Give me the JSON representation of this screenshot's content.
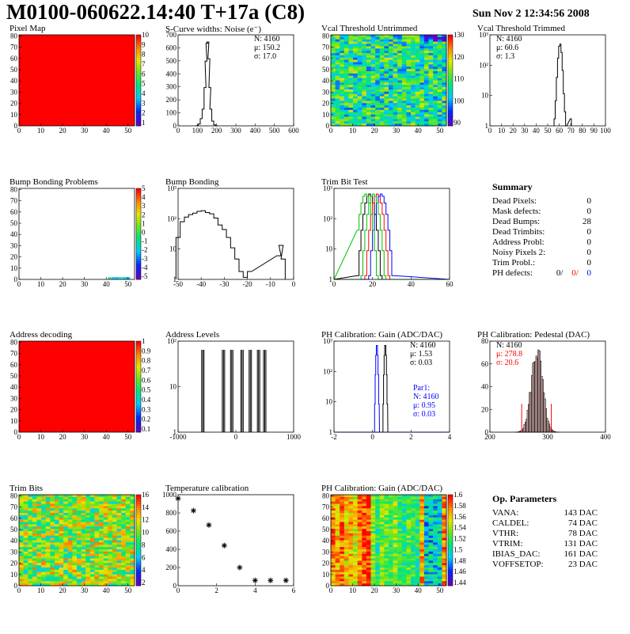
{
  "header": {
    "title": "M0100-060622.14:40 T+17a (C8)",
    "date": "Sun Nov  2 12:34:56 2008"
  },
  "chart_data": [
    {
      "id": "pixelmap",
      "type": "heatmap",
      "title": "Pixel Map",
      "xticks": [
        "0",
        "10",
        "20",
        "30",
        "40",
        "50"
      ],
      "yticks": [
        "0",
        "10",
        "20",
        "30",
        "40",
        "50",
        "60",
        "70",
        "80"
      ],
      "palette_labels": [
        "10",
        "9",
        "8",
        "7",
        "6",
        "5",
        "4",
        "3",
        "2",
        "1"
      ],
      "fill": "uniform-max"
    },
    {
      "id": "scurve",
      "type": "bar",
      "title": "S-Curve widths: Noise (e⁻)",
      "xticks": [
        "0",
        "100",
        "200",
        "300",
        "400",
        "500",
        "600"
      ],
      "yticks": [
        "0",
        "100",
        "200",
        "300",
        "400",
        "500",
        "600",
        "700"
      ],
      "stats": [
        "N: 4160",
        "μ: 150.2",
        "σ: 17.0"
      ],
      "x": [
        100,
        110,
        120,
        130,
        140,
        145,
        150,
        155,
        160,
        165,
        170,
        180,
        190,
        200
      ],
      "y": [
        2,
        15,
        60,
        140,
        320,
        540,
        690,
        700,
        560,
        320,
        140,
        40,
        8,
        1
      ],
      "xlim": [
        0,
        600
      ],
      "ylim": [
        0,
        760
      ]
    },
    {
      "id": "vcaluntrim",
      "type": "heatmap",
      "title": "Vcal Threshold Untrimmed",
      "xticks": [
        "0",
        "10",
        "20",
        "30",
        "40",
        "50"
      ],
      "yticks": [
        "0",
        "10",
        "20",
        "30",
        "40",
        "50",
        "60",
        "70",
        "80"
      ],
      "palette_labels": [
        "130",
        "120",
        "110",
        "100",
        "90"
      ],
      "fill": "random-green"
    },
    {
      "id": "vcaltrim",
      "type": "bar",
      "title": "Vcal Threshold Trimmed",
      "log": true,
      "xticks": [
        "0",
        "10",
        "20",
        "30",
        "40",
        "50",
        "60",
        "70",
        "80",
        "90",
        "100"
      ],
      "yticks": [
        "1",
        "10",
        "10²",
        "10³"
      ],
      "stats": [
        "N: 4160",
        "μ: 60.6",
        "σ:  1.3"
      ],
      "x": [
        56,
        57,
        58,
        59,
        60,
        61,
        62,
        63,
        64,
        65,
        66,
        70
      ],
      "y": [
        1,
        6,
        60,
        400,
        1300,
        1600,
        700,
        120,
        12,
        2,
        0,
        1
      ],
      "xlim": [
        0,
        100
      ],
      "ylim": [
        0.5,
        4000
      ]
    },
    {
      "id": "bump",
      "type": "heatmap",
      "title": "Bump Bonding Problems",
      "xticks": [
        "0",
        "10",
        "20",
        "30",
        "40",
        "50"
      ],
      "yticks": [
        "0",
        "10",
        "20",
        "30",
        "40",
        "50",
        "60",
        "70",
        "80"
      ],
      "palette_labels": [
        "5",
        "4",
        "3",
        "2",
        "1",
        "0",
        "-1",
        "-2",
        "-3",
        "-4",
        "-5"
      ],
      "fill": "sparse"
    },
    {
      "id": "bumpbond",
      "type": "bar",
      "title": "Bump Bonding",
      "log": true,
      "xticks": [
        "-50",
        "-40",
        "-30",
        "-20",
        "-10",
        "0"
      ],
      "yticks": [
        "1",
        "10",
        "10²",
        "10³"
      ],
      "x": [
        -50,
        -48,
        -46,
        -44,
        -42,
        -40,
        -38,
        -36,
        -34,
        -32,
        -30,
        -28,
        -26,
        -24,
        -22,
        -20,
        -18,
        -16,
        -2,
        -1,
        0
      ],
      "y": [
        20,
        80,
        120,
        150,
        170,
        200,
        210,
        180,
        160,
        110,
        60,
        40,
        20,
        8,
        3,
        1,
        0.6,
        1,
        4,
        10,
        3
      ],
      "xlim": [
        -50,
        5
      ],
      "ylim": [
        0.5,
        1500
      ]
    },
    {
      "id": "trimbit",
      "type": "line",
      "title": "Trim Bit Test",
      "log": true,
      "xticks": [
        "0",
        "20",
        "40",
        "60"
      ],
      "yticks": [
        "1",
        "10",
        "10²",
        "10³"
      ],
      "xlim": [
        0,
        60
      ],
      "ylim": [
        0.5,
        2000
      ]
    },
    {
      "id": "pcal_gain_hist",
      "type": "bar",
      "title": "PH Calibration: Gain (ADC/DAC)",
      "log": true,
      "xticks": [
        "-2",
        "0",
        "2",
        "4"
      ],
      "yticks": [
        "1",
        "10",
        "10²",
        "10³"
      ],
      "stats": [
        "N: 4160",
        "μ: 1.53",
        "σ: 0.03"
      ],
      "stats2": [
        "Par1:",
        "N: 4160",
        "μ: 0.95",
        "σ: 0.03"
      ],
      "xlim": [
        -2,
        6
      ],
      "ylim": [
        0.5,
        2000
      ]
    },
    {
      "id": "addrdec",
      "type": "heatmap",
      "title": "Address decoding",
      "xticks": [
        "0",
        "10",
        "20",
        "30",
        "40",
        "50"
      ],
      "yticks": [
        "0",
        "10",
        "20",
        "30",
        "40",
        "50",
        "60",
        "70",
        "80"
      ],
      "palette_labels": [
        "1",
        "0.9",
        "0.8",
        "0.7",
        "0.6",
        "0.5",
        "0.4",
        "0.3",
        "0.2",
        "0.1"
      ],
      "fill": "uniform-max"
    },
    {
      "id": "addrlevels",
      "type": "bar",
      "title": "Address Levels",
      "log": true,
      "xticks": [
        "-1000",
        "0",
        "1000"
      ],
      "yticks": [
        "1",
        "10",
        "10²"
      ],
      "x": [
        -800,
        -300,
        -100,
        150,
        350,
        550,
        700
      ],
      "y": [
        700,
        700,
        700,
        700,
        700,
        700,
        700
      ],
      "xlim": [
        -1400,
        1400
      ],
      "ylim": [
        0.5,
        1500
      ]
    },
    {
      "id": "pcal_ped",
      "type": "bar",
      "title": "PH Calibration: Pedestal (DAC)",
      "xticks": [
        "200",
        "300",
        "400"
      ],
      "yticks": [
        "0",
        "20",
        "40",
        "60",
        "80"
      ],
      "stats": [
        "N: 4160",
        "μ: 278.8",
        "σ: 20.6"
      ],
      "xlim": [
        150,
        470
      ],
      "ylim": [
        0,
        90
      ]
    },
    {
      "id": "trimbits",
      "type": "heatmap",
      "title": "Trim Bits",
      "xticks": [
        "0",
        "10",
        "20",
        "30",
        "40",
        "50"
      ],
      "yticks": [
        "0",
        "10",
        "20",
        "30",
        "40",
        "50",
        "60",
        "70",
        "80"
      ],
      "palette_labels": [
        "16",
        "14",
        "12",
        "10",
        "8",
        "6",
        "4",
        "2"
      ],
      "fill": "random-yellow"
    },
    {
      "id": "tempcal",
      "type": "scatter",
      "title": "Temperature calibration",
      "xticks": [
        "0",
        "2",
        "4",
        "6"
      ],
      "yticks": [
        "0",
        "200",
        "400",
        "600",
        "800",
        "1000"
      ],
      "x": [
        0,
        1,
        2,
        3,
        4,
        5,
        6,
        7
      ],
      "y": [
        1000,
        840,
        650,
        380,
        90,
        -80,
        -80,
        -80
      ],
      "xlim": [
        0,
        7.5
      ],
      "ylim": [
        -150,
        1050
      ]
    },
    {
      "id": "pcal_gain_map",
      "type": "heatmap",
      "title": "PH Calibration: Gain (ADC/DAC)",
      "xticks": [
        "0",
        "10",
        "20",
        "30",
        "40",
        "50"
      ],
      "yticks": [
        "0",
        "10",
        "20",
        "30",
        "40",
        "50",
        "60",
        "70",
        "80"
      ],
      "palette_labels": [
        "1.6",
        "1.58",
        "1.56",
        "1.54",
        "1.52",
        "1.5",
        "1.48",
        "1.46",
        "1.44"
      ],
      "fill": "columns"
    }
  ],
  "summary": {
    "title": "Summary",
    "rows": [
      {
        "label": "Dead Pixels:",
        "value": "0"
      },
      {
        "label": "Mask defects:",
        "value": "0"
      },
      {
        "label": "Dead Bumps:",
        "value": "28"
      },
      {
        "label": "Dead Trimbits:",
        "value": "0"
      },
      {
        "label": "Address Probl:",
        "value": "0"
      },
      {
        "label": "Noisy Pixels 2:",
        "value": "0"
      },
      {
        "label": "Trim Probl.:",
        "value": "0"
      }
    ],
    "ph_label": "PH defects:",
    "ph_values": [
      "0/",
      "0/",
      "0"
    ],
    "ph_colors": [
      "#000000",
      "#ff0000",
      "#0000ff"
    ]
  },
  "op": {
    "title": "Op. Parameters",
    "rows": [
      {
        "label": "VANA:",
        "value": "143 DAC"
      },
      {
        "label": "CALDEL:",
        "value": "74 DAC"
      },
      {
        "label": "VTHR:",
        "value": "78 DAC"
      },
      {
        "label": "VTRIM:",
        "value": "131 DAC"
      },
      {
        "label": "IBIAS_DAC:",
        "value": "161 DAC"
      },
      {
        "label": "VOFFSETOP:",
        "value": "23 DAC"
      }
    ]
  }
}
